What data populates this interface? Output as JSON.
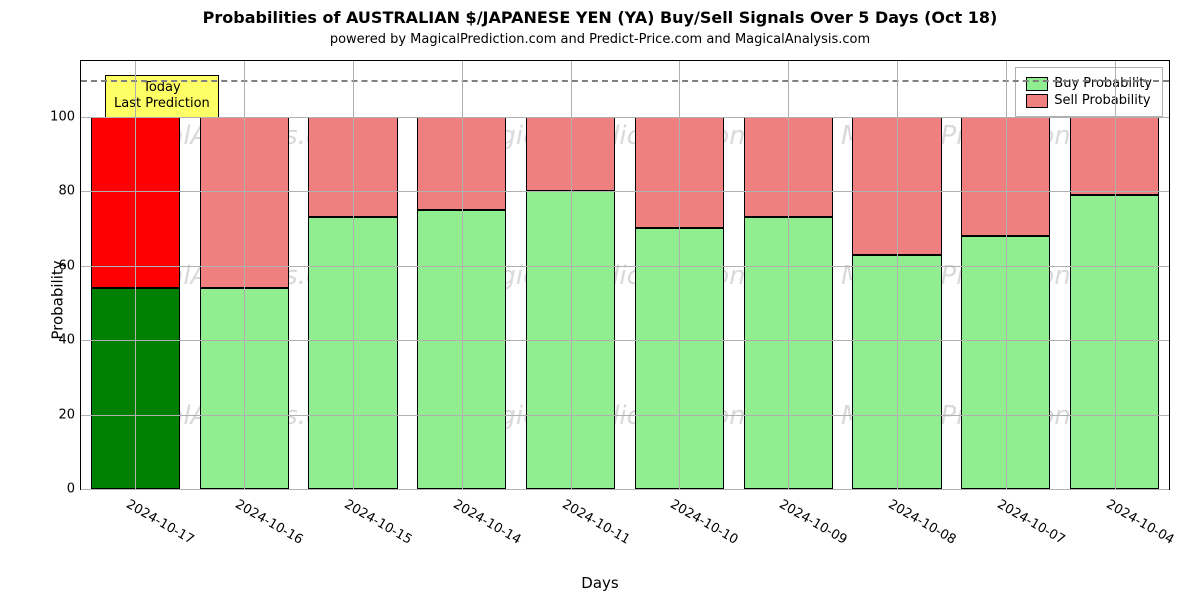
{
  "title": "Probabilities of AUSTRALIAN $/JAPANESE YEN (YA) Buy/Sell Signals Over 5 Days (Oct 18)",
  "title_fontsize": 16,
  "subtitle": "powered by MagicalPrediction.com and Predict-Price.com and MagicalAnalysis.com",
  "subtitle_fontsize": 13,
  "xlabel": "Days",
  "ylabel": "Probability",
  "background_color": "#ffffff",
  "grid_color": "#b0b0b0",
  "ref_line": {
    "value": 110,
    "color": "#808080"
  },
  "ylim": [
    0,
    115
  ],
  "yticks": [
    0,
    20,
    40,
    60,
    80,
    100
  ],
  "chart": {
    "type": "stacked-bar",
    "bar_width_ratio": 0.82,
    "categories": [
      "2024-10-17",
      "2024-10-16",
      "2024-10-15",
      "2024-10-14",
      "2024-10-11",
      "2024-10-10",
      "2024-10-09",
      "2024-10-08",
      "2024-10-07",
      "2024-10-04"
    ],
    "series": [
      {
        "name": "Buy Probability",
        "values": [
          54,
          54,
          73,
          75,
          80,
          70,
          73,
          63,
          68,
          79
        ],
        "colors": [
          "#008000",
          "#90ee90",
          "#90ee90",
          "#90ee90",
          "#90ee90",
          "#90ee90",
          "#90ee90",
          "#90ee90",
          "#90ee90",
          "#90ee90"
        ]
      },
      {
        "name": "Sell Probability",
        "values": [
          46,
          46,
          27,
          25,
          20,
          30,
          27,
          37,
          32,
          21
        ],
        "colors": [
          "#ff0000",
          "#f08080",
          "#f08080",
          "#f08080",
          "#f08080",
          "#f08080",
          "#f08080",
          "#f08080",
          "#f08080",
          "#f08080"
        ]
      }
    ]
  },
  "legend": {
    "items": [
      {
        "label": "Buy Probability",
        "color": "#90ee90"
      },
      {
        "label": "Sell Probability",
        "color": "#f08080"
      }
    ],
    "position": "top-right"
  },
  "annotation": {
    "lines": [
      "Today",
      "Last Prediction"
    ],
    "background": "#ffff66",
    "border": "#000000"
  },
  "watermarks": {
    "text_a": "MagicalAnalysis.com",
    "text_b": "MagicalPrediction.com"
  }
}
